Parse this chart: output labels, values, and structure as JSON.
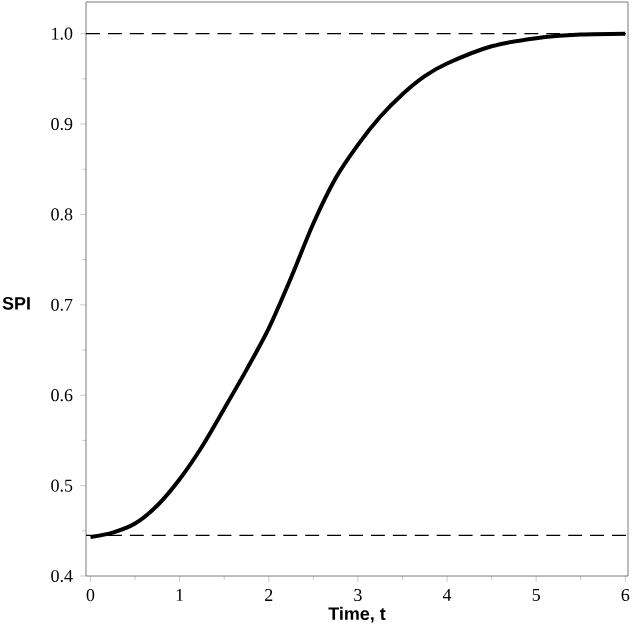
{
  "chart_data": {
    "type": "line",
    "xlabel": "Time, t",
    "ylabel": "SPI",
    "x": [
      0,
      0.25,
      0.5,
      0.75,
      1,
      1.25,
      1.5,
      1.75,
      2,
      2.25,
      2.5,
      2.75,
      3,
      3.25,
      3.5,
      3.75,
      4,
      4.5,
      5,
      5.5,
      6
    ],
    "series": [
      {
        "color": "#000000",
        "values": [
          0.443,
          0.448,
          0.458,
          0.478,
          0.507,
          0.543,
          0.585,
          0.628,
          0.674,
          0.73,
          0.79,
          0.84,
          0.877,
          0.908,
          0.933,
          0.953,
          0.967,
          0.986,
          0.995,
          0.999,
          1.0
        ]
      }
    ],
    "xlim": [
      -0.05,
      6.03
    ],
    "ylim": [
      0.4,
      1.035
    ],
    "xticks": [
      0,
      1,
      2,
      3,
      4,
      5,
      6
    ],
    "yticks": [
      {
        "value": 0.4,
        "label": "0.4"
      },
      {
        "value": 0.5,
        "label": "0.5"
      },
      {
        "value": 0.6,
        "label": "0.6"
      },
      {
        "value": 0.7,
        "label": "0.7"
      },
      {
        "value": 0.8,
        "label": "0.8"
      },
      {
        "value": 0.9,
        "label": "0.9"
      },
      {
        "value": 1.0,
        "label": "1.0"
      }
    ],
    "ref_lines": [
      {
        "axis": "y",
        "value": 1.0,
        "line_style": "dashed",
        "color": "#000000"
      },
      {
        "axis": "y",
        "value": 0.445,
        "line_style": "dashed",
        "color": "#000000"
      }
    ],
    "grid": false,
    "marker": "none",
    "line_style": "solid"
  }
}
